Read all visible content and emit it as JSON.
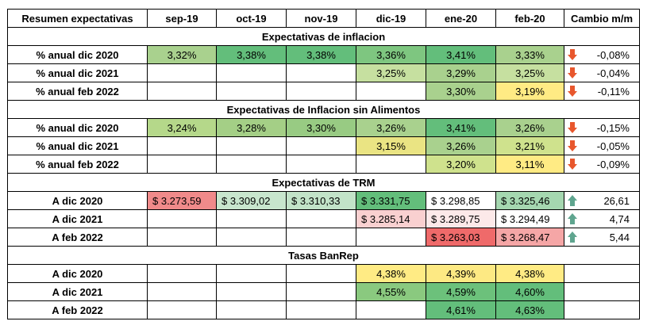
{
  "header": [
    "Resumen expectativas",
    "sep-19",
    "oct-19",
    "nov-19",
    "dic-19",
    "ene-20",
    "feb-20",
    "Cambio m/m"
  ],
  "sections": [
    {
      "title": "Expectativas de inflacion",
      "type": "pct",
      "rows": [
        {
          "label": "% anual dic 2020",
          "values": [
            "3,32%",
            "3,38%",
            "3,38%",
            "3,36%",
            "3,41%",
            "3,33%"
          ],
          "fills": [
            "#a9d18e",
            "#63be7b",
            "#63be7b",
            "#7ec680",
            "#63be7b",
            "#a9d18e"
          ],
          "change": "-0,08%",
          "dir": "down"
        },
        {
          "label": "% anual dic 2021",
          "values": [
            "",
            "",
            "",
            "3,25%",
            "3,29%",
            "3,25%"
          ],
          "fills": [
            "",
            "",
            "",
            "#c6e0a0",
            "#a9d18e",
            "#c6e0a0"
          ],
          "change": "-0,04%",
          "dir": "down"
        },
        {
          "label": "% anual feb 2022",
          "values": [
            "",
            "",
            "",
            "",
            "3,30%",
            "3,19%"
          ],
          "fills": [
            "",
            "",
            "",
            "",
            "#a9d18e",
            "#ffeb84"
          ],
          "change": "-0,11%",
          "dir": "down"
        }
      ]
    },
    {
      "title": "Expectativas de Inflacion sin Alimentos",
      "type": "pct",
      "rows": [
        {
          "label": "% anual dic 2020",
          "values": [
            "3,24%",
            "3,28%",
            "3,30%",
            "3,26%",
            "3,41%",
            "3,26%"
          ],
          "fills": [
            "#b5d88a",
            "#a4cf86",
            "#98cb83",
            "#a9d18e",
            "#63be7b",
            "#a9d18e"
          ],
          "change": "-0,15%",
          "dir": "down"
        },
        {
          "label": "% anual dic 2021",
          "values": [
            "",
            "",
            "",
            "3,15%",
            "3,26%",
            "3,21%"
          ],
          "fills": [
            "",
            "",
            "",
            "#eae483",
            "#a9d18e",
            "#cfe28d"
          ],
          "change": "-0,05%",
          "dir": "down"
        },
        {
          "label": "% anual feb 2022",
          "values": [
            "",
            "",
            "",
            "",
            "3,20%",
            "3,11%"
          ],
          "fills": [
            "",
            "",
            "",
            "",
            "#cfe28d",
            "#ffeb84"
          ],
          "change": "-0,09%",
          "dir": "down"
        }
      ]
    },
    {
      "title": "Expectativas de TRM",
      "type": "money",
      "rows": [
        {
          "label": "A dic 2020",
          "values": [
            "$ 3.273,59",
            "$ 3.309,02",
            "$ 3.310,33",
            "$ 3.331,75",
            "$ 3.298,85",
            "$ 3.325,46"
          ],
          "fills": [
            "#f08a8a",
            "#c8e6cd",
            "#c2e3c8",
            "#63be7b",
            "#ffffff",
            "#a5d7b0"
          ],
          "change": "26,61",
          "dir": "up"
        },
        {
          "label": "A dic 2021",
          "values": [
            "",
            "",
            "",
            "$ 3.285,14",
            "$ 3.289,75",
            "$ 3.294,49"
          ],
          "fills": [
            "",
            "",
            "",
            "#f9d0d0",
            "#fce9e9",
            "#ffffff"
          ],
          "change": "4,74",
          "dir": "up"
        },
        {
          "label": "A feb 2022",
          "values": [
            "",
            "",
            "",
            "",
            "$ 3.263,03",
            "$ 3.268,47"
          ],
          "fills": [
            "",
            "",
            "",
            "",
            "#ef6a6a",
            "#f5a6a6"
          ],
          "change": "5,44",
          "dir": "up"
        }
      ]
    },
    {
      "title": "Tasas BanRep",
      "type": "pct",
      "rows": [
        {
          "label": "A dic 2020",
          "values": [
            "",
            "",
            "",
            "4,38%",
            "4,39%",
            "4,38%"
          ],
          "fills": [
            "",
            "",
            "",
            "#ffeb84",
            "#fde983",
            "#ffeb84"
          ],
          "change": "",
          "dir": ""
        },
        {
          "label": "A dic 2021",
          "values": [
            "",
            "",
            "",
            "4,55%",
            "4,59%",
            "4,60%"
          ],
          "fills": [
            "",
            "",
            "",
            "#8ac97f",
            "#6cc17b",
            "#63be7b"
          ],
          "change": "",
          "dir": ""
        },
        {
          "label": "A feb 2022",
          "values": [
            "",
            "",
            "",
            "",
            "4,61%",
            "4,63%"
          ],
          "fills": [
            "",
            "",
            "",
            "",
            "#63be7b",
            "#63be7b"
          ],
          "change": "",
          "dir": ""
        }
      ]
    }
  ],
  "colors": {
    "arrow_down": "#e8572d",
    "arrow_up": "#5fa58f"
  }
}
